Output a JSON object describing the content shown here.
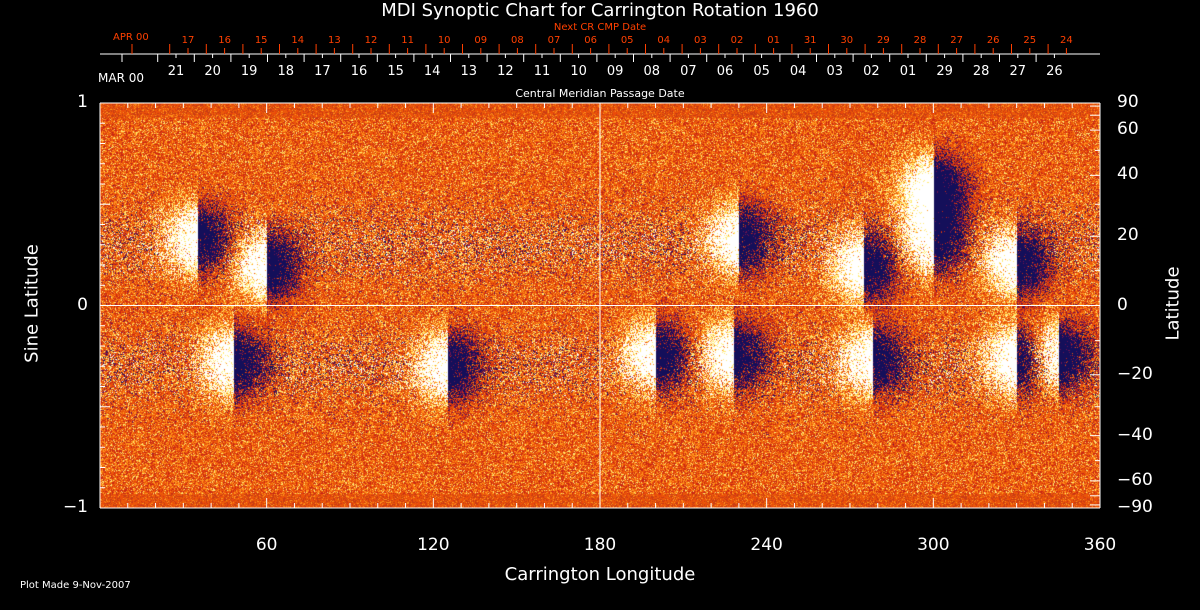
{
  "chart_data": {
    "type": "heatmap",
    "title": "MDI Synoptic Chart for Carrington Rotation 1960",
    "xlabel": "Carrington Longitude",
    "ylabel_left": "Sine Latitude",
    "ylabel_right": "Latitude",
    "xlim": [
      0,
      360
    ],
    "ylim_sine": [
      -1,
      1
    ],
    "x_ticks": [
      "60",
      "120",
      "180",
      "240",
      "300",
      "360"
    ],
    "x_tick_values": [
      60,
      120,
      180,
      240,
      300,
      360
    ],
    "y_left_ticks": [
      "1",
      "0",
      "−1"
    ],
    "y_left_tick_values": [
      1,
      0,
      -1
    ],
    "y_right_ticks": [
      "90",
      "60",
      "40",
      "20",
      "0",
      "−20",
      "−40",
      "−60",
      "−90"
    ],
    "y_right_tick_values": [
      90,
      60,
      40,
      20,
      0,
      -20,
      -40,
      -60,
      -90
    ],
    "crosshair": {
      "longitude": 180,
      "sine_latitude": 0
    },
    "colors": {
      "background_field": "#e8400a",
      "positive": "#ffffff",
      "negative": "#1a1060",
      "axis": "#ffffff",
      "date_axis_top": "#ff4000"
    },
    "features": [
      {
        "lon": 35,
        "sinlat": 0.33,
        "polarity": "bipole"
      },
      {
        "lon": 60,
        "sinlat": 0.2,
        "polarity": "bipole"
      },
      {
        "lon": 48,
        "sinlat": -0.28,
        "polarity": "bipole"
      },
      {
        "lon": 125,
        "sinlat": -0.3,
        "polarity": "bipole"
      },
      {
        "lon": 200,
        "sinlat": -0.25,
        "polarity": "bipole"
      },
      {
        "lon": 228,
        "sinlat": -0.25,
        "polarity": "bipole"
      },
      {
        "lon": 230,
        "sinlat": 0.33,
        "polarity": "bipole"
      },
      {
        "lon": 278,
        "sinlat": -0.27,
        "polarity": "bipole"
      },
      {
        "lon": 275,
        "sinlat": 0.2,
        "polarity": "bipole"
      },
      {
        "lon": 300,
        "sinlat": 0.33,
        "polarity": "bipole"
      },
      {
        "lon": 330,
        "sinlat": -0.27,
        "polarity": "bipole"
      },
      {
        "lon": 330,
        "sinlat": 0.22,
        "polarity": "bipole"
      },
      {
        "lon": 345,
        "sinlat": -0.25,
        "polarity": "bipole"
      },
      {
        "lon": 300,
        "sinlat": 0.58,
        "polarity": "bipole"
      }
    ]
  },
  "top_axis": {
    "title_next": "Next CR CMP Date",
    "title_cmp": "Central Meridian Passage Date",
    "next_month": "APR 00",
    "next_dates": [
      "17",
      "16",
      "15",
      "14",
      "13",
      "12",
      "11",
      "10",
      "09",
      "08",
      "07",
      "06",
      "05",
      "04",
      "03",
      "02",
      "01",
      "31",
      "30",
      "29",
      "28",
      "27",
      "26",
      "25",
      "24"
    ],
    "cmp_month": "MAR 00",
    "cmp_dates": [
      "21",
      "20",
      "19",
      "18",
      "17",
      "16",
      "15",
      "14",
      "13",
      "12",
      "11",
      "10",
      "09",
      "08",
      "07",
      "06",
      "05",
      "04",
      "03",
      "02",
      "01",
      "29",
      "28",
      "27",
      "26"
    ]
  },
  "footer": {
    "plot_made": "Plot Made  9-Nov-2007"
  }
}
